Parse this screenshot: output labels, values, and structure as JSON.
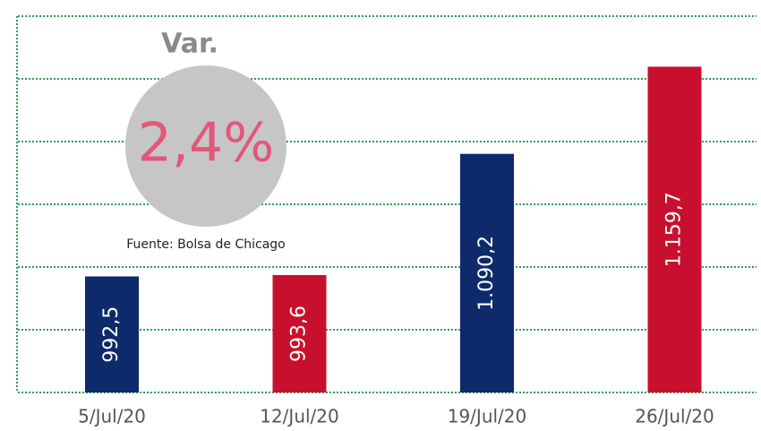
{
  "chart_data": {
    "type": "bar",
    "categories": [
      "5/Jul/20",
      "12/Jul/20",
      "19/Jul/20",
      "26/Jul/20"
    ],
    "values": [
      992.5,
      993.6,
      1090.2,
      1159.7
    ],
    "value_labels": [
      "992,5",
      "993,6",
      "1.090,2",
      "1.159,7"
    ],
    "colors": [
      "#0e2a6b",
      "#c8102e",
      "#0e2a6b",
      "#c8102e"
    ],
    "ylim": [
      900,
      1200
    ],
    "yticks": [
      900,
      950,
      1000,
      1050,
      1100,
      1150,
      1200
    ],
    "grid": true,
    "annotations": {
      "variation_title": "Var.",
      "variation_value": "2,4%",
      "source": "Fuente: Bolsa de Chicago"
    }
  }
}
